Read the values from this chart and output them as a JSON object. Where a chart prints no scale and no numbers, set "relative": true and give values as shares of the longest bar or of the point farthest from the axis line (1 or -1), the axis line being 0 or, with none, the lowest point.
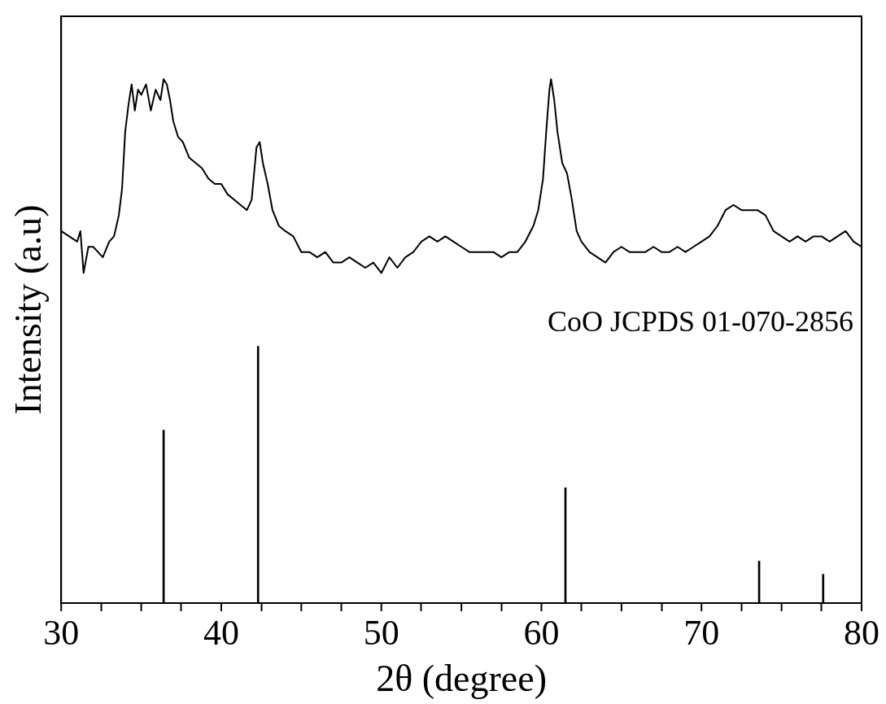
{
  "chart_data": {
    "type": "line",
    "xlabel": "2θ (degree)",
    "ylabel": "Intensity (a.u)",
    "relative": true,
    "tick_labels": "x",
    "legend": false,
    "grid": false,
    "marker": "none",
    "line_style": "solid",
    "xlim": [
      30,
      80
    ],
    "xticks": [
      30,
      {
        "value": 35,
        "label": null
      },
      40,
      {
        "value": 45,
        "label": null
      },
      50,
      {
        "value": 55,
        "label": null
      },
      60,
      {
        "value": 65,
        "label": null
      },
      70,
      {
        "value": 75,
        "label": null
      },
      80
    ],
    "series": [
      {
        "color": "#000000",
        "x": [
          30,
          30.5,
          31,
          31.2,
          31.4,
          31.7,
          32,
          32.3,
          32.6,
          33,
          33.3,
          33.6,
          33.8,
          34,
          34.2,
          34.4,
          34.6,
          34.8,
          35,
          35.3,
          35.6,
          35.9,
          36.2,
          36.4,
          36.6,
          36.8,
          37,
          37.3,
          37.6,
          38,
          38.4,
          38.8,
          39.2,
          39.6,
          40,
          40.4,
          40.8,
          41.2,
          41.6,
          41.9,
          42.2,
          42.4,
          42.6,
          42.9,
          43.2,
          43.6,
          44,
          44.5,
          45,
          45.5,
          46,
          46.5,
          47,
          47.5,
          48,
          48.5,
          49,
          49.5,
          50,
          50.5,
          51,
          51.5,
          52,
          52.5,
          53,
          53.5,
          54,
          54.5,
          55,
          55.5,
          56,
          56.5,
          57,
          57.5,
          58,
          58.5,
          59,
          59.5,
          59.8,
          60.1,
          60.3,
          60.5,
          60.6,
          60.8,
          61,
          61.3,
          61.6,
          61.9,
          62.2,
          62.5,
          63,
          63.5,
          64,
          64.5,
          65,
          65.5,
          66,
          66.5,
          67,
          67.5,
          68,
          68.5,
          69,
          69.5,
          70,
          70.5,
          71,
          71.5,
          72,
          72.5,
          73,
          73.5,
          74,
          74.5,
          75,
          75.5,
          76,
          76.5,
          77,
          77.5,
          78,
          78.5,
          79,
          79.5,
          80
        ],
        "values": [
          0.71,
          0.7,
          0.69,
          0.71,
          0.63,
          0.68,
          0.68,
          0.67,
          0.66,
          0.69,
          0.7,
          0.74,
          0.79,
          0.9,
          0.95,
          0.99,
          0.94,
          0.98,
          0.97,
          0.99,
          0.94,
          0.98,
          0.96,
          1.0,
          0.99,
          0.96,
          0.92,
          0.89,
          0.88,
          0.85,
          0.84,
          0.83,
          0.81,
          0.8,
          0.8,
          0.78,
          0.77,
          0.76,
          0.75,
          0.77,
          0.87,
          0.88,
          0.84,
          0.8,
          0.75,
          0.72,
          0.71,
          0.7,
          0.67,
          0.67,
          0.66,
          0.67,
          0.65,
          0.65,
          0.66,
          0.65,
          0.64,
          0.65,
          0.63,
          0.66,
          0.64,
          0.66,
          0.67,
          0.69,
          0.7,
          0.69,
          0.7,
          0.69,
          0.68,
          0.67,
          0.67,
          0.67,
          0.67,
          0.66,
          0.67,
          0.67,
          0.69,
          0.72,
          0.75,
          0.81,
          0.9,
          0.98,
          1.0,
          0.96,
          0.9,
          0.84,
          0.82,
          0.77,
          0.71,
          0.69,
          0.67,
          0.66,
          0.65,
          0.67,
          0.68,
          0.67,
          0.67,
          0.67,
          0.68,
          0.67,
          0.67,
          0.68,
          0.67,
          0.68,
          0.69,
          0.7,
          0.72,
          0.75,
          0.76,
          0.75,
          0.75,
          0.75,
          0.74,
          0.71,
          0.7,
          0.69,
          0.7,
          0.69,
          0.7,
          0.7,
          0.69,
          0.7,
          0.71,
          0.69,
          0.68
        ]
      },
      {
        "type": "bar",
        "name": "CoO JCPDS 01-070-2856",
        "color": "#000000",
        "x": [
          36.4,
          42.3,
          61.5,
          73.6,
          77.6
        ],
        "values": [
          0.33,
          0.49,
          0.22,
          0.08,
          0.055
        ]
      }
    ]
  }
}
